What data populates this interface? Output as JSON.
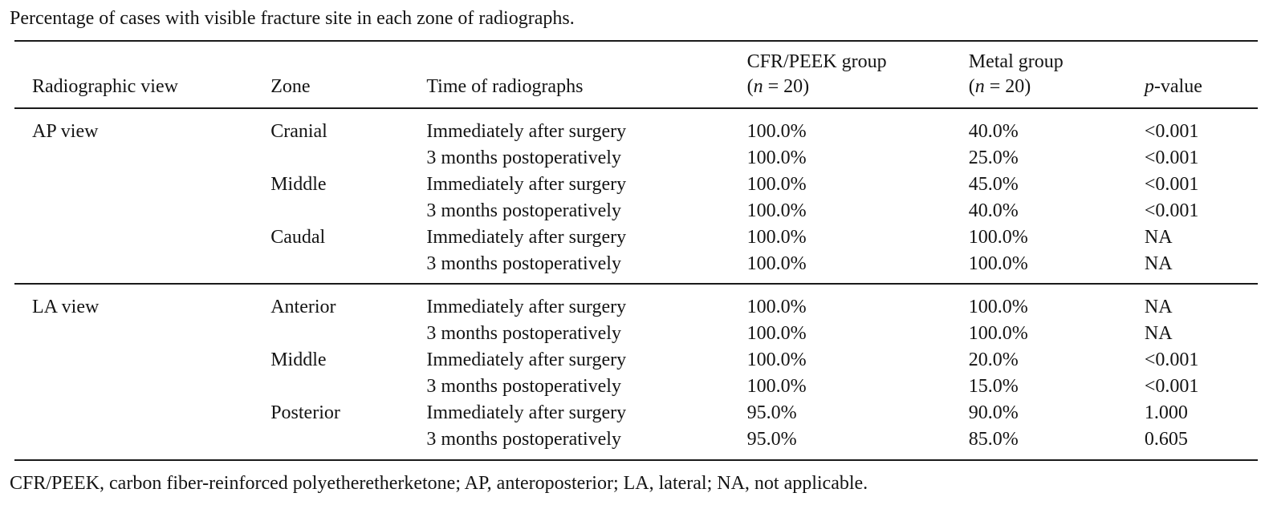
{
  "caption": {
    "text": "Percentage of cases with visible fracture site in each zone of radiographs."
  },
  "table": {
    "columns": {
      "view": "Radiographic view",
      "zone": "Zone",
      "time": "Time of radiographs",
      "cfr": {
        "line1": "CFR/PEEK group",
        "paren_open": "(",
        "n_italic": "n",
        "paren_rest": " = 20)"
      },
      "metal": {
        "line1": "Metal group",
        "paren_open": "(",
        "n_italic": "n",
        "paren_rest": " = 20)"
      },
      "pvalue": {
        "italic": "p",
        "rest": "-value"
      }
    },
    "sections": [
      {
        "view": "AP view",
        "rows": [
          {
            "zone": "Cranial",
            "time": "Immediately after surgery",
            "cfr": "100.0%",
            "metal": "40.0%",
            "p": "<0.001"
          },
          {
            "zone": "",
            "time": "3 months postoperatively",
            "cfr": "100.0%",
            "metal": "25.0%",
            "p": "<0.001"
          },
          {
            "zone": "Middle",
            "time": "Immediately after surgery",
            "cfr": "100.0%",
            "metal": "45.0%",
            "p": "<0.001"
          },
          {
            "zone": "",
            "time": "3 months postoperatively",
            "cfr": "100.0%",
            "metal": "40.0%",
            "p": "<0.001"
          },
          {
            "zone": "Caudal",
            "time": "Immediately after surgery",
            "cfr": "100.0%",
            "metal": "100.0%",
            "p": "NA"
          },
          {
            "zone": "",
            "time": "3 months postoperatively",
            "cfr": "100.0%",
            "metal": "100.0%",
            "p": "NA"
          }
        ]
      },
      {
        "view": "LA view",
        "rows": [
          {
            "zone": "Anterior",
            "time": "Immediately after surgery",
            "cfr": "100.0%",
            "metal": "100.0%",
            "p": "NA"
          },
          {
            "zone": "",
            "time": "3 months postoperatively",
            "cfr": "100.0%",
            "metal": "100.0%",
            "p": "NA"
          },
          {
            "zone": "Middle",
            "time": "Immediately after surgery",
            "cfr": "100.0%",
            "metal": "20.0%",
            "p": "<0.001"
          },
          {
            "zone": "",
            "time": "3 months postoperatively",
            "cfr": "100.0%",
            "metal": "15.0%",
            "p": "<0.001"
          },
          {
            "zone": "Posterior",
            "time": "Immediately after surgery",
            "cfr": "95.0%",
            "metal": "90.0%",
            "p": "1.000"
          },
          {
            "zone": "",
            "time": "3 months postoperatively",
            "cfr": "95.0%",
            "metal": "85.0%",
            "p": "0.605"
          }
        ]
      }
    ]
  },
  "footnote": {
    "text": "CFR/PEEK, carbon fiber-reinforced polyetheretherketone; AP, anteroposterior; LA, lateral; NA, not applicable."
  }
}
